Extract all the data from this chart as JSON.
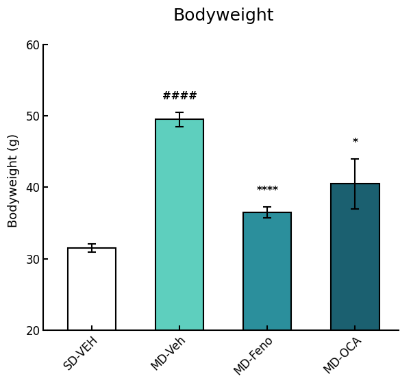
{
  "title": "Bodyweight",
  "ylabel": "Bodyweight (g)",
  "categories": [
    "SD-VEH",
    "MD-Veh",
    "MD-Feno",
    "MD-OCA"
  ],
  "values": [
    31.5,
    49.5,
    36.5,
    40.5
  ],
  "errors": [
    0.6,
    1.0,
    0.8,
    3.5
  ],
  "bar_colors": [
    "#ffffff",
    "#5ecfbe",
    "#2b8f9c",
    "#1b6070"
  ],
  "bar_edgecolors": [
    "#000000",
    "#000000",
    "#000000",
    "#000000"
  ],
  "ylim": [
    20,
    62
  ],
  "yticks": [
    20,
    30,
    40,
    50,
    60
  ],
  "annotations": [
    "",
    "####",
    "****",
    "*"
  ],
  "annot_fontsize": 11,
  "title_fontsize": 18,
  "label_fontsize": 13,
  "tick_fontsize": 12,
  "bar_width": 0.55,
  "figsize": [
    6.0,
    5.62
  ],
  "dpi": 100
}
